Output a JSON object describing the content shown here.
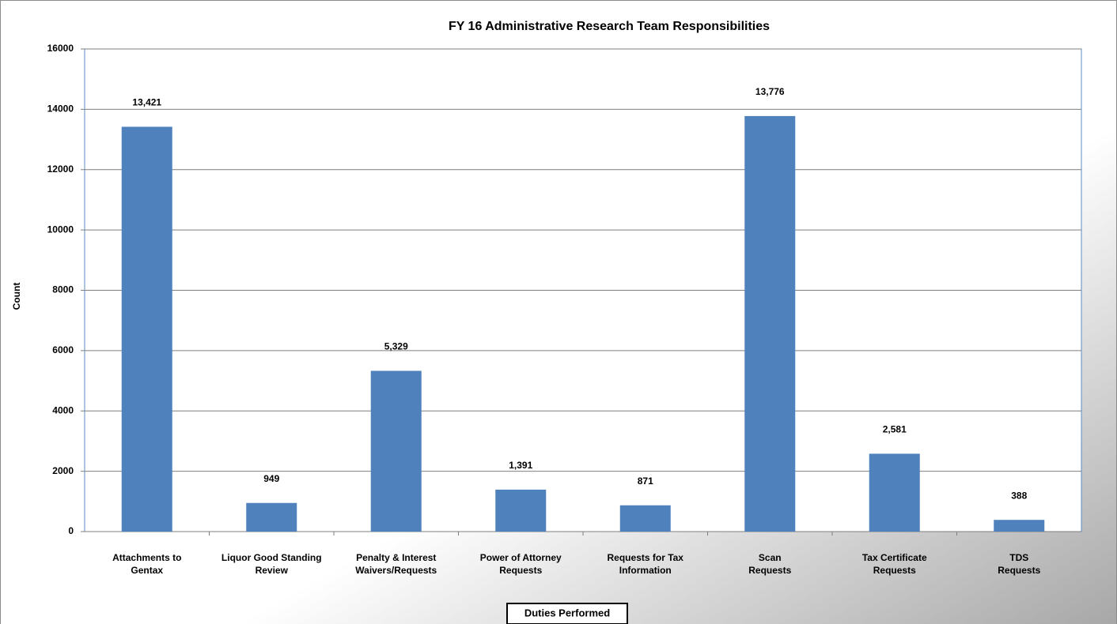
{
  "chart_data": {
    "type": "bar",
    "title": "FY 16 Administrative  Research Team Responsibilities",
    "y_label": "Count",
    "x_label": "Duties Performed",
    "categories": [
      [
        "Attachments to",
        "Gentax"
      ],
      [
        "Liquor Good Standing",
        "Review"
      ],
      [
        "Penalty & Interest",
        "Waivers/Requests"
      ],
      [
        "Power of Attorney",
        "Requests"
      ],
      [
        "Requests for Tax",
        "Information"
      ],
      [
        "Scan",
        "Requests"
      ],
      [
        "Tax Certificate",
        "Requests"
      ],
      [
        "TDS",
        "Requests"
      ]
    ],
    "values": [
      13421,
      949,
      5329,
      1391,
      871,
      13776,
      2581,
      388
    ],
    "value_labels": [
      "13,421",
      "949",
      "5,329",
      "1,391",
      "871",
      "13,776",
      "2,581",
      "388"
    ],
    "color": "#4f81bd",
    "ylim": [
      0,
      16000
    ],
    "yticks": [
      0,
      2000,
      4000,
      6000,
      8000,
      10000,
      12000,
      14000,
      16000
    ],
    "grid": true
  }
}
